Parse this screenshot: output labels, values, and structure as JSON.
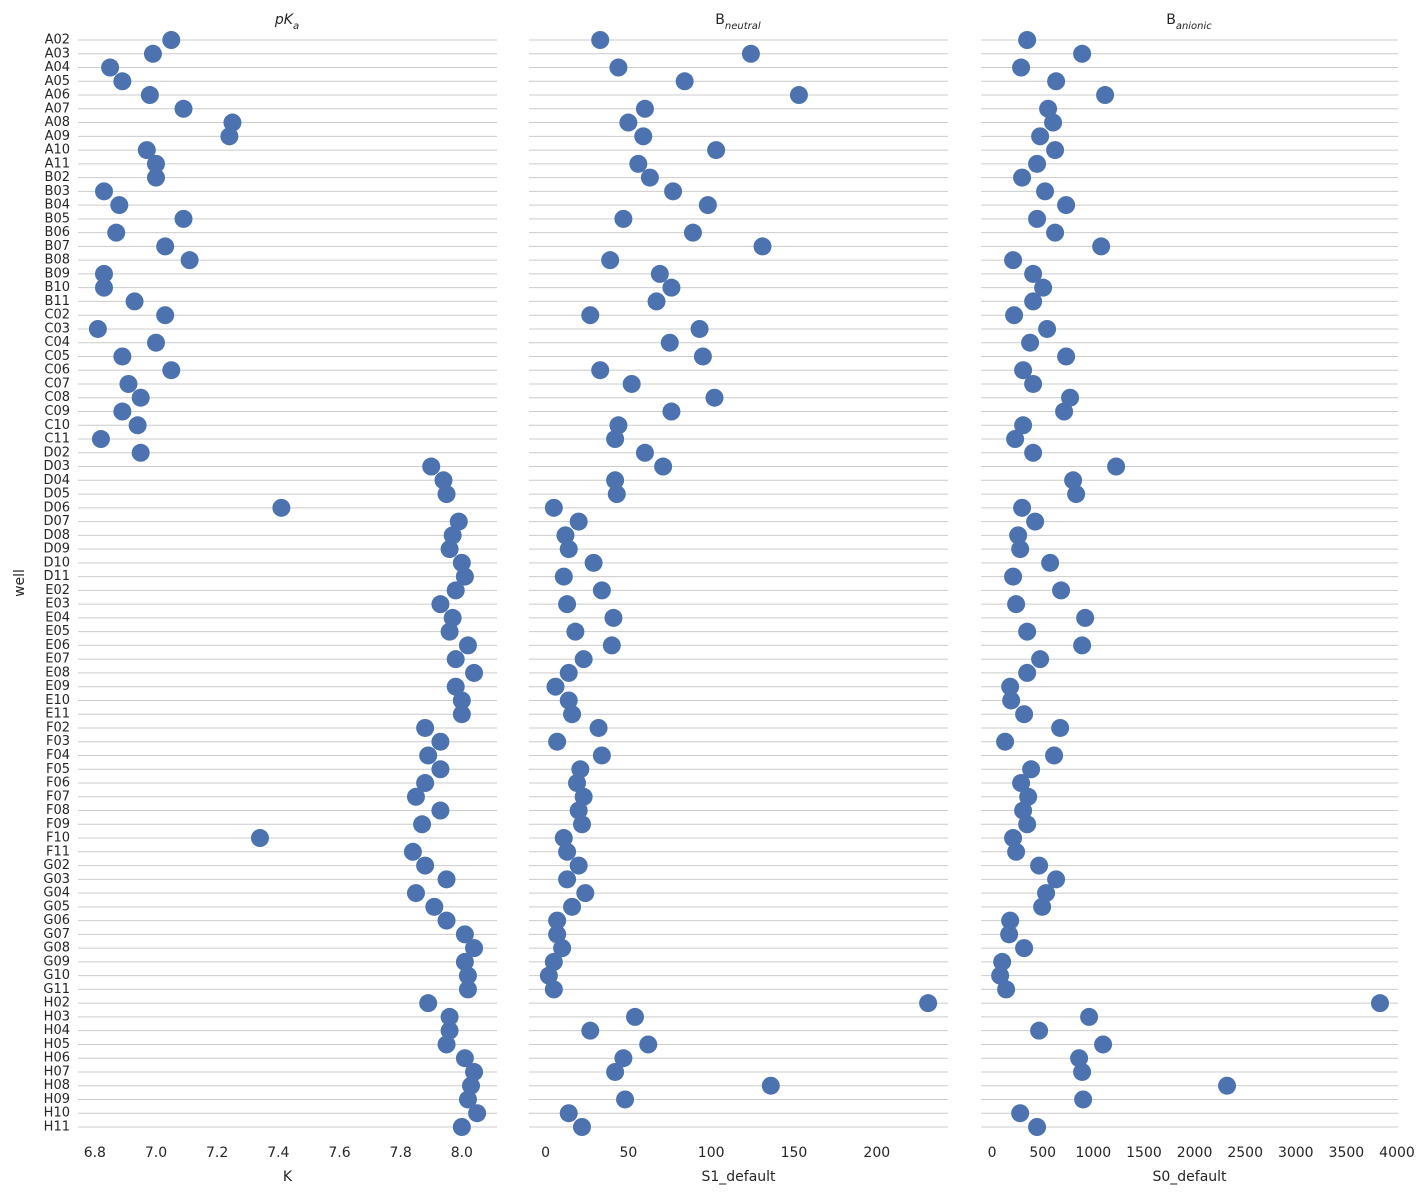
{
  "chart_data": [
    {
      "type": "strip",
      "title_main": "pK",
      "title_sub": "a",
      "xlabel": "K",
      "ylabel": "well",
      "color": "#4c72b0",
      "grid": true,
      "categories": [
        "A02",
        "A03",
        "A04",
        "A05",
        "A06",
        "A07",
        "A08",
        "A09",
        "A10",
        "A11",
        "B02",
        "B03",
        "B04",
        "B05",
        "B06",
        "B07",
        "B08",
        "B09",
        "B10",
        "B11",
        "C02",
        "C03",
        "C04",
        "C05",
        "C06",
        "C07",
        "C08",
        "C09",
        "C10",
        "C11",
        "D02",
        "D03",
        "D04",
        "D05",
        "D06",
        "D07",
        "D08",
        "D09",
        "D10",
        "D11",
        "E02",
        "E03",
        "E04",
        "E05",
        "E06",
        "E07",
        "E08",
        "E09",
        "E10",
        "E11",
        "F02",
        "F03",
        "F04",
        "F05",
        "F06",
        "F07",
        "F08",
        "F09",
        "F10",
        "F11",
        "G02",
        "G03",
        "G04",
        "G05",
        "G06",
        "G07",
        "G08",
        "G09",
        "G10",
        "G11",
        "H02",
        "H03",
        "H04",
        "H05",
        "H06",
        "H07",
        "H08",
        "H09",
        "H10",
        "H11"
      ],
      "xlim": [
        6.745,
        8.115
      ],
      "xticks": [
        6.8,
        {
          "value": 7,
          "label": "7.0"
        },
        7.2,
        7.4,
        7.6,
        7.8,
        {
          "value": 8,
          "label": "8.0"
        }
      ],
      "values": [
        7.05,
        6.99,
        6.85,
        6.89,
        6.98,
        7.09,
        7.25,
        7.24,
        6.97,
        7.0,
        7.0,
        6.83,
        6.88,
        7.09,
        6.87,
        7.03,
        7.11,
        6.83,
        6.83,
        6.93,
        7.03,
        6.81,
        7.0,
        6.89,
        7.05,
        6.91,
        6.95,
        6.89,
        6.94,
        6.82,
        6.95,
        7.9,
        7.94,
        7.95,
        7.41,
        7.99,
        7.97,
        7.96,
        8.0,
        8.01,
        7.98,
        7.93,
        7.97,
        7.96,
        8.02,
        7.98,
        8.04,
        7.98,
        8.0,
        8.0,
        7.88,
        7.93,
        7.89,
        7.93,
        7.88,
        7.85,
        7.93,
        7.87,
        7.34,
        7.84,
        7.88,
        7.95,
        7.85,
        7.91,
        7.95,
        8.01,
        8.04,
        8.01,
        8.02,
        8.02,
        7.89,
        7.96,
        7.96,
        7.95,
        8.01,
        8.04,
        8.03,
        8.02,
        8.05,
        8.0
      ]
    },
    {
      "type": "strip",
      "title_main": "B",
      "title_sub": "neutral",
      "xlabel": "S1_default",
      "color": "#4c72b0",
      "grid": true,
      "xlim": [
        -10,
        243
      ],
      "xticks": [
        0,
        50,
        100,
        150,
        200
      ],
      "values": [
        33,
        124,
        44,
        84,
        153,
        60,
        50,
        59,
        103,
        56,
        63,
        77,
        98,
        47,
        89,
        131,
        39,
        69,
        76,
        67,
        27,
        93,
        75,
        95,
        33,
        52,
        102,
        76,
        44,
        42,
        60,
        71,
        42,
        43,
        5,
        20,
        12,
        14,
        29,
        11,
        34,
        13,
        41,
        18,
        40,
        23,
        14,
        6,
        14,
        16,
        32,
        7,
        34,
        21,
        19,
        23,
        20,
        22,
        11,
        13,
        20,
        13,
        24,
        16,
        7,
        7,
        10,
        5,
        2,
        5,
        231,
        54,
        27,
        62,
        47,
        42,
        136,
        48,
        14,
        22
      ]
    },
    {
      "type": "strip",
      "title_main": "B",
      "title_sub": "anionic",
      "xlabel": "S0_default",
      "color": "#4c72b0",
      "grid": true,
      "xlim": [
        -110,
        4010
      ],
      "xticks": [
        0,
        500,
        1000,
        1500,
        2000,
        2500,
        3000,
        3500,
        4000
      ],
      "values": [
        346,
        889,
        286,
        632,
        1116,
        553,
        602,
        474,
        622,
        444,
        296,
        523,
        731,
        444,
        622,
        1077,
        207,
        405,
        504,
        405,
        217,
        543,
        375,
        731,
        306,
        405,
        770,
        711,
        306,
        227,
        405,
        1225,
        800,
        830,
        296,
        425,
        257,
        277,
        573,
        207,
        681,
        237,
        919,
        346,
        889,
        474,
        346,
        178,
        188,
        316,
        672,
        128,
        612,
        385,
        286,
        356,
        306,
        346,
        207,
        237,
        464,
        632,
        533,
        494,
        178,
        168,
        316,
        99,
        79,
        138,
        3832,
        958,
        464,
        1096,
        859,
        889,
        2321,
        899,
        277,
        444
      ]
    }
  ]
}
